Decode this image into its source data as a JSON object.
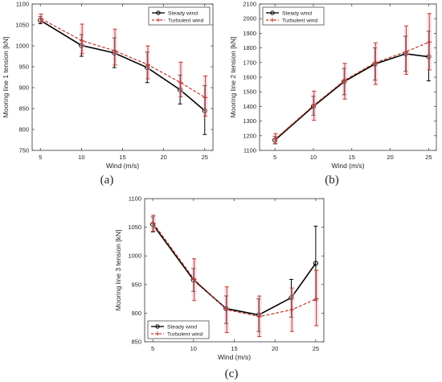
{
  "chart_data": [
    {
      "type": "line",
      "panel_label": "(a)",
      "xlabel": "Wind (m/s)",
      "ylabel": "Mooring line 1 tension [kN]",
      "xlim": [
        4,
        26
      ],
      "ylim": [
        750,
        1100
      ],
      "xticks": [
        5,
        10,
        15,
        20,
        25
      ],
      "yticks": [
        750,
        800,
        850,
        900,
        950,
        1000,
        1050,
        1100
      ],
      "grid": false,
      "legend_position": "top-right",
      "x": [
        5,
        10,
        14,
        18,
        22,
        25
      ],
      "series": [
        {
          "name": "Steady wind",
          "color": "#000000",
          "style": "solid",
          "marker": "circle",
          "values": [
            1061,
            1001,
            983,
            948,
            895,
            845
          ],
          "err_low": [
            1053,
            975,
            948,
            912,
            861,
            788
          ],
          "err_high": [
            1070,
            1027,
            1019,
            985,
            930,
            905
          ]
        },
        {
          "name": "Turbulent wind",
          "color": "#c0392b",
          "style": "dashed",
          "marker": "plus",
          "values": [
            1065,
            1012,
            988,
            955,
            912,
            876
          ],
          "err_low": [
            1056,
            981,
            954,
            921,
            878,
            832
          ],
          "err_high": [
            1076,
            1052,
            1040,
            1000,
            961,
            928
          ]
        }
      ]
    },
    {
      "type": "line",
      "panel_label": "(b)",
      "xlabel": "Wind (m/s)",
      "ylabel": "Mooring line 2 tension [kN]",
      "xlim": [
        3,
        26
      ],
      "ylim": [
        1100,
        2100
      ],
      "xticks": [
        5,
        10,
        15,
        20,
        25
      ],
      "yticks": [
        1100,
        1200,
        1300,
        1400,
        1500,
        1600,
        1700,
        1800,
        1900,
        2000,
        2100
      ],
      "grid": false,
      "legend_position": "top-left",
      "x": [
        5,
        10,
        14,
        18,
        22,
        25
      ],
      "series": [
        {
          "name": "Steady wind",
          "color": "#000000",
          "style": "solid",
          "marker": "circle",
          "values": [
            1170,
            1400,
            1570,
            1690,
            1760,
            1740
          ],
          "err_low": [
            1145,
            1340,
            1480,
            1580,
            1640,
            1575
          ],
          "err_high": [
            1195,
            1470,
            1660,
            1800,
            1880,
            1915
          ]
        },
        {
          "name": "Turbulent wind",
          "color": "#c0392b",
          "style": "dashed",
          "marker": "plus",
          "values": [
            1180,
            1410,
            1580,
            1700,
            1775,
            1840
          ],
          "err_low": [
            1145,
            1305,
            1450,
            1550,
            1620,
            1650
          ],
          "err_high": [
            1215,
            1505,
            1695,
            1835,
            1950,
            2035
          ]
        }
      ]
    },
    {
      "type": "line",
      "panel_label": "(c)",
      "xlabel": "Wind (m/s)",
      "ylabel": "Mooring line 3 tension [kN]",
      "xlim": [
        4,
        26
      ],
      "ylim": [
        850,
        1100
      ],
      "xticks": [
        5,
        10,
        15,
        20,
        25
      ],
      "yticks": [
        850,
        900,
        950,
        1000,
        1050,
        1100
      ],
      "grid": false,
      "legend_position": "bottom-left",
      "x": [
        5,
        10,
        14,
        18,
        22,
        25
      ],
      "series": [
        {
          "name": "Steady wind",
          "color": "#000000",
          "style": "solid",
          "marker": "circle",
          "values": [
            1055,
            958,
            908,
            897,
            927,
            987
          ],
          "err_low": [
            1042,
            938,
            882,
            868,
            893,
            922
          ],
          "err_high": [
            1068,
            978,
            930,
            925,
            959,
            1052
          ]
        },
        {
          "name": "Turbulent wind",
          "color": "#c0392b",
          "style": "dashed",
          "marker": "plus",
          "values": [
            1057,
            959,
            906,
            894,
            906,
            925
          ],
          "err_low": [
            1043,
            922,
            866,
            859,
            868,
            878
          ],
          "err_high": [
            1071,
            995,
            946,
            930,
            944,
            975
          ]
        }
      ]
    }
  ]
}
